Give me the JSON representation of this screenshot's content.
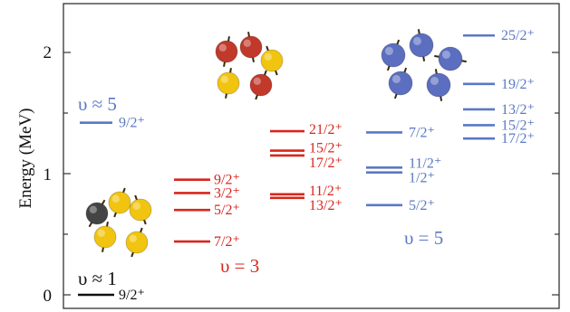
{
  "axis": {
    "ylabel": "Energy (MeV)",
    "ticks": [
      "0",
      "1",
      "2"
    ],
    "ylim": [
      0,
      2.35
    ]
  },
  "colors": {
    "v1": "#111111",
    "v3": "#d7261e",
    "v5": "#5b78c4",
    "sphere_red": "#c0392b",
    "sphere_yellow": "#f1c40f",
    "sphere_blue": "#5b6ec0",
    "sphere_gray": "#444444"
  },
  "groups": {
    "v1": {
      "label": "υ ≈ 1",
      "levels": [
        {
          "spin": "9/2⁺",
          "energy": 0.0
        }
      ]
    },
    "v5_low": {
      "label": "υ ≈ 5",
      "levels": [
        {
          "spin": "9/2⁺",
          "energy": 1.42
        }
      ]
    },
    "v3": {
      "label": "υ = 3",
      "levels": [
        {
          "spin": "9/2⁺",
          "energy": 0.95
        },
        {
          "spin": "3/2⁺",
          "energy": 0.84
        },
        {
          "spin": "5/2⁺",
          "energy": 0.7
        },
        {
          "spin": "7/2⁺",
          "energy": 0.44
        },
        {
          "spin": "21/2⁺",
          "energy": 1.35
        },
        {
          "spin": "15/2⁺",
          "energy": 1.19
        },
        {
          "spin": "17/2⁺",
          "energy": 1.15
        },
        {
          "spin": "11/2⁺",
          "energy": 0.83
        },
        {
          "spin": "13/2⁺",
          "energy": 0.8
        }
      ]
    },
    "v5": {
      "label": "υ = 5",
      "levels": [
        {
          "spin": "7/2⁺",
          "energy": 1.34
        },
        {
          "spin": "11/2⁺",
          "energy": 1.05
        },
        {
          "spin": "1/2⁺",
          "energy": 1.01
        },
        {
          "spin": "5/2⁺",
          "energy": 0.74
        },
        {
          "spin": "25/2⁺",
          "energy": 2.14
        },
        {
          "spin": "19/2⁺",
          "energy": 1.74
        },
        {
          "spin": "13/2⁺",
          "energy": 1.53
        },
        {
          "spin": "15/2⁺",
          "energy": 1.4
        },
        {
          "spin": "17/2⁺",
          "energy": 1.29
        }
      ]
    }
  },
  "icons": {
    "cluster_v1": "spin-cluster-v1-icon",
    "cluster_v3": "spin-cluster-v3-icon",
    "cluster_v5": "spin-cluster-v5-icon"
  }
}
